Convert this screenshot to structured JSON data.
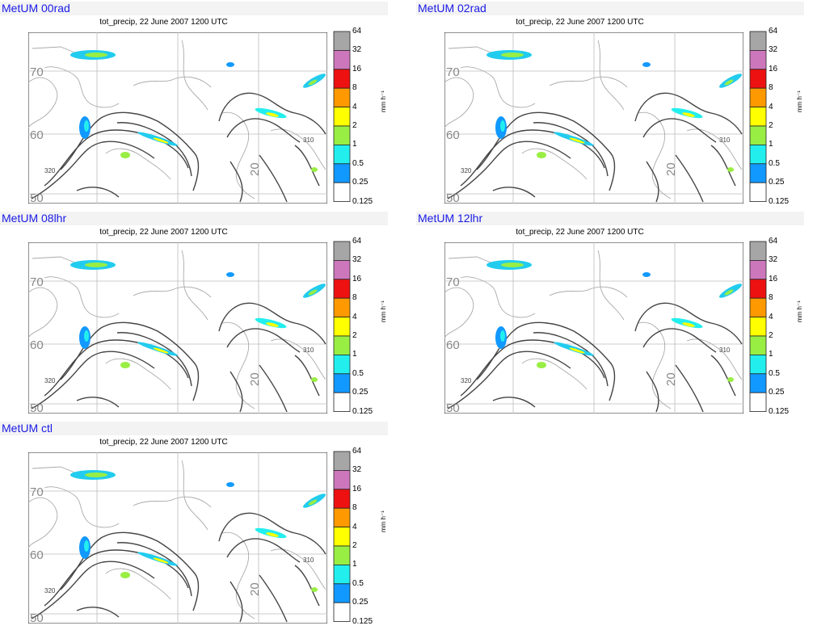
{
  "panels": [
    {
      "label": "MetUM 00rad",
      "title": "tot_precip, 22 June 2007 1200 UTC"
    },
    {
      "label": "MetUM 02rad",
      "title": "tot_precip, 22 June 2007 1200 UTC"
    },
    {
      "label": "MetUM 08lhr",
      "title": "tot_precip, 22 June 2007 1200 UTC"
    },
    {
      "label": "MetUM 12lhr",
      "title": "tot_precip, 22 June 2007 1200 UTC"
    },
    {
      "label": "MetUM ctl",
      "title": "tot_precip, 22 June 2007 1200 UTC"
    }
  ],
  "colorbar": {
    "unit": "mm h⁻¹",
    "ticks": [
      "64",
      "32",
      "16",
      "8",
      "4",
      "2",
      "1",
      "0.5",
      "0.25",
      "0.125"
    ],
    "colors": [
      "#a6a6a6",
      "#cc77bb",
      "#ee1111",
      "#ff9900",
      "#ffff00",
      "#99ee44",
      "#22eeee",
      "#1199ff",
      "#ffffff"
    ]
  },
  "map_labels": {
    "lat_70": "70",
    "lat_60": "60",
    "lat_50": "50",
    "lon_20": "20",
    "contour_a": "320",
    "contour_b": "310"
  },
  "chart_data": {
    "type": "heatmap",
    "variable": "tot_precip",
    "date": "22 June 2007 1200 UTC",
    "units": "mm h-1",
    "levels": [
      0.125,
      0.25,
      0.5,
      1,
      2,
      4,
      8,
      16,
      32,
      64
    ],
    "panels": [
      "MetUM 00rad",
      "MetUM 02rad",
      "MetUM 08lhr",
      "MetUM 12lhr",
      "MetUM ctl"
    ],
    "lat_labels": [
      70,
      60,
      50
    ],
    "lon_labels": [
      20
    ],
    "contour_labels": [
      320,
      310
    ]
  }
}
